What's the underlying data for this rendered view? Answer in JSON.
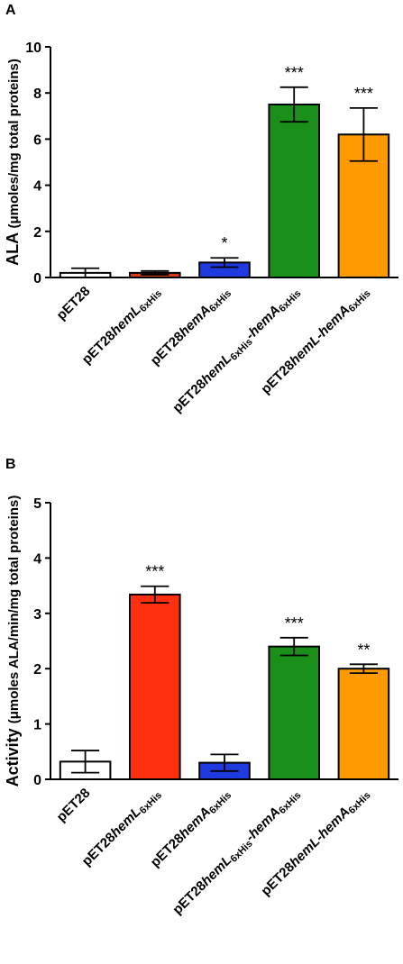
{
  "figure": {
    "panels": [
      {
        "letter": "A",
        "ylabel_parts": [
          {
            "t": "ALA ",
            "big": true
          },
          {
            "t": "(μmoles/mg total proteins)",
            "big": false
          }
        ],
        "colors": [
          "#ffffff",
          "#d63a1a",
          "#1f3be0",
          "#1a8f1a",
          "#ff9a00"
        ],
        "significance": [
          "",
          "",
          "*",
          "***",
          "***"
        ]
      },
      {
        "letter": "B",
        "ylabel_parts": [
          {
            "t": "Activity ",
            "big": true
          },
          {
            "t": "(μmoles ALA/min/mg total proteins)",
            "big": false
          }
        ],
        "colors": [
          "#ffffff",
          "#ff3010",
          "#1f3be0",
          "#1a8f1a",
          "#ff9a00"
        ],
        "significance": [
          "",
          "***",
          "",
          "***",
          "**"
        ]
      }
    ],
    "category_labels": [
      [
        {
          "t": "pET28"
        }
      ],
      [
        {
          "t": "pET28"
        },
        {
          "t": "hemL",
          "i": true
        },
        {
          "t": "6xHis",
          "s": true
        }
      ],
      [
        {
          "t": "pET28"
        },
        {
          "t": "hemA",
          "i": true
        },
        {
          "t": "6xHis",
          "s": true
        }
      ],
      [
        {
          "t": "pET28"
        },
        {
          "t": "hemL",
          "i": true
        },
        {
          "t": "6xHis",
          "s": true
        },
        {
          "t": "-"
        },
        {
          "t": "hemA",
          "i": true
        },
        {
          "t": "6xHis",
          "s": true
        }
      ],
      [
        {
          "t": "pET28"
        },
        {
          "t": "hemL-hemA",
          "i": true
        },
        {
          "t": "6xHis",
          "s": true
        }
      ]
    ]
  },
  "chart_data": [
    {
      "type": "bar",
      "title": "",
      "categories": [
        "pET28",
        "pET28hemL6xHis",
        "pET28hemA6xHis",
        "pET28hemL6xHis-hemA6xHis",
        "pET28hemL-hemA6xHis"
      ],
      "values": [
        0.2,
        0.2,
        0.65,
        7.5,
        6.2
      ],
      "errors": [
        0.2,
        0.08,
        0.2,
        0.75,
        1.15
      ],
      "ylabel": "ALA (μmoles/mg total proteins)",
      "xlabel": "",
      "ylim": [
        0,
        10
      ],
      "yticks": [
        0,
        2,
        4,
        6,
        8,
        10
      ],
      "grid": false
    },
    {
      "type": "bar",
      "title": "",
      "categories": [
        "pET28",
        "pET28hemL6xHis",
        "pET28hemA6xHis",
        "pET28hemL6xHis-hemA6xHis",
        "pET28hemL-hemA6xHis"
      ],
      "values": [
        0.32,
        3.34,
        0.3,
        2.4,
        2.0
      ],
      "errors": [
        0.2,
        0.15,
        0.15,
        0.16,
        0.08
      ],
      "ylabel": "Activity (μmoles ALA/min/mg total proteins)",
      "xlabel": "",
      "ylim": [
        0,
        5
      ],
      "yticks": [
        0,
        1,
        2,
        3,
        4,
        5
      ],
      "grid": false
    }
  ]
}
